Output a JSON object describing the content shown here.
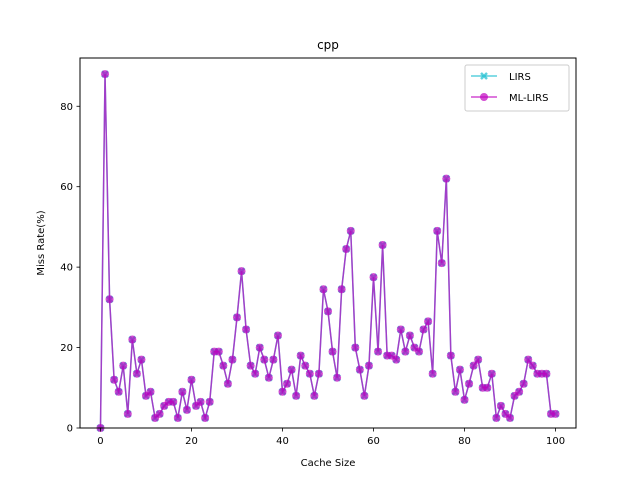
{
  "chart_data": {
    "type": "line",
    "title": "cpp",
    "xlabel": "Cache Size",
    "ylabel": "Miss Rate(%)",
    "xlim": [
      -4.5,
      104.5
    ],
    "ylim": [
      0,
      92
    ],
    "xticks": [
      0,
      20,
      40,
      60,
      80,
      100
    ],
    "yticks": [
      0,
      20,
      40,
      60,
      80
    ],
    "grid": false,
    "legend_position": "top-right",
    "x": [
      0,
      1,
      2,
      3,
      4,
      5,
      6,
      7,
      8,
      9,
      10,
      11,
      12,
      13,
      14,
      15,
      16,
      17,
      18,
      19,
      20,
      21,
      22,
      23,
      24,
      25,
      26,
      27,
      28,
      29,
      30,
      31,
      32,
      33,
      34,
      35,
      36,
      37,
      38,
      39,
      40,
      41,
      42,
      43,
      44,
      45,
      46,
      47,
      48,
      49,
      50,
      51,
      52,
      53,
      54,
      55,
      56,
      57,
      58,
      59,
      60,
      61,
      62,
      63,
      64,
      65,
      66,
      67,
      68,
      69,
      70,
      71,
      72,
      73,
      74,
      75,
      76,
      77,
      78,
      79,
      80,
      81,
      82,
      83,
      84,
      85,
      86,
      87,
      88,
      89,
      90,
      91,
      92,
      93,
      94,
      95,
      96,
      97,
      98,
      99,
      100
    ],
    "series": [
      {
        "name": "LIRS",
        "color": "#17becf",
        "marker": "x",
        "values": [
          0,
          88,
          32,
          12,
          9,
          15.5,
          3.5,
          22,
          13.5,
          17,
          8,
          9,
          2.5,
          3.5,
          5.5,
          6.5,
          6.5,
          2.5,
          9,
          4.5,
          12,
          5.5,
          6.5,
          2.5,
          6.5,
          19,
          19,
          15.5,
          11,
          17,
          27.5,
          39,
          24.5,
          15.5,
          13.5,
          20,
          17,
          12.5,
          17,
          23,
          9,
          11,
          14.5,
          8,
          18,
          15.5,
          13.5,
          8,
          13.5,
          34.5,
          29,
          19,
          12.5,
          34.5,
          44.5,
          49,
          20,
          14.5,
          8,
          15.5,
          37.5,
          19,
          45.5,
          18,
          18,
          17,
          24.5,
          19,
          23,
          20,
          19,
          24.5,
          26.5,
          13.5,
          49,
          41,
          62,
          18,
          9,
          14.5,
          7,
          11,
          15.5,
          17,
          10,
          10,
          13.5,
          2.5,
          5.5,
          3.5,
          2.5,
          8,
          9,
          11,
          17,
          15.5,
          13.5,
          13.5,
          13.5,
          3.5,
          3.5
        ]
      },
      {
        "name": "ML-LIRS",
        "color": "#bf00bf",
        "marker": "o",
        "values": [
          0,
          88,
          32,
          12,
          9,
          15.5,
          3.5,
          22,
          13.5,
          17,
          8,
          9,
          2.5,
          3.5,
          5.5,
          6.5,
          6.5,
          2.5,
          9,
          4.5,
          12,
          5.5,
          6.5,
          2.5,
          6.5,
          19,
          19,
          15.5,
          11,
          17,
          27.5,
          39,
          24.5,
          15.5,
          13.5,
          20,
          17,
          12.5,
          17,
          23,
          9,
          11,
          14.5,
          8,
          18,
          15.5,
          13.5,
          8,
          13.5,
          34.5,
          29,
          19,
          12.5,
          34.5,
          44.5,
          49,
          20,
          14.5,
          8,
          15.5,
          37.5,
          19,
          45.5,
          18,
          18,
          17,
          24.5,
          19,
          23,
          20,
          19,
          24.5,
          26.5,
          13.5,
          49,
          41,
          62,
          18,
          9,
          14.5,
          7,
          11,
          15.5,
          17,
          10,
          10,
          13.5,
          2.5,
          5.5,
          3.5,
          2.5,
          8,
          9,
          11,
          17,
          15.5,
          13.5,
          13.5,
          13.5,
          3.5,
          3.5
        ]
      }
    ]
  }
}
